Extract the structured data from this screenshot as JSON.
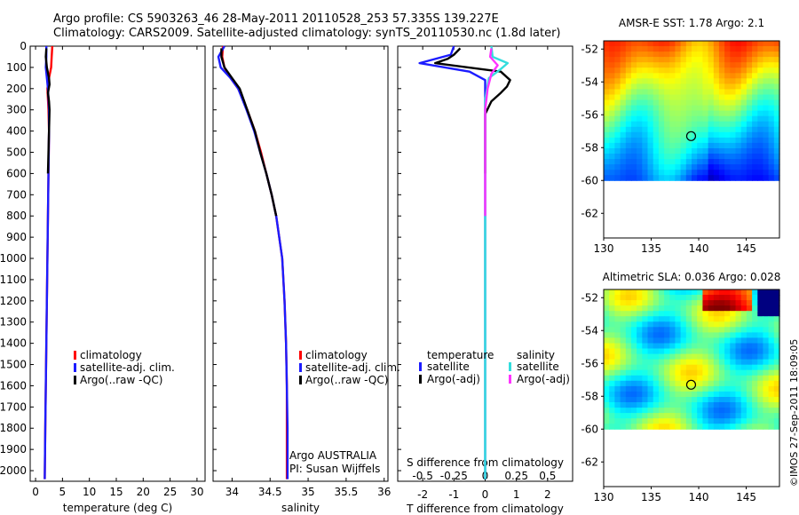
{
  "header": {
    "line1": "Argo profile: CS 5903263_46 28-May-2011 20110528_253 57.335S 139.227E",
    "line2": "Climatology: CARS2009. Satellite-adjusted climatology: synTS_20110530.nc (1.8d later)"
  },
  "stamp": "©IMOS 27-Sep-2011 18:09:05",
  "colors": {
    "climatology": "#ff0000",
    "satellite": "#1c1cff",
    "argo": "#000000",
    "sal_satellite": "#33dddd",
    "sal_argo": "#ff33ff"
  },
  "chart_data": [
    {
      "id": "temperature",
      "type": "line",
      "xlabel": "temperature (deg C)",
      "ylabel": "",
      "xlim": [
        -1,
        31.5
      ],
      "ylim": [
        2050,
        0
      ],
      "xticks": [
        0,
        5,
        10,
        15,
        20,
        25,
        30
      ],
      "yticks": [
        0,
        100,
        200,
        300,
        400,
        500,
        600,
        700,
        800,
        900,
        1000,
        1100,
        1200,
        1300,
        1400,
        1500,
        1600,
        1700,
        1800,
        1900,
        2000
      ],
      "legend": [
        "climatology",
        "satellite-adj. clim.",
        "Argo(..raw -QC)"
      ],
      "legend_position": "lower-center",
      "series": [
        {
          "name": "climatology",
          "color_key": "climatology",
          "x": [
            3.1,
            3.0,
            2.9,
            2.5,
            2.2,
            2.4,
            2.5,
            2.4,
            2.3,
            2.2,
            2.1,
            2.0,
            1.9,
            1.8,
            1.7
          ],
          "y": [
            0,
            50,
            100,
            150,
            200,
            300,
            400,
            600,
            800,
            1000,
            1200,
            1400,
            1600,
            1800,
            2040
          ]
        },
        {
          "name": "satellite-adj. clim.",
          "color_key": "satellite",
          "x": [
            2.0,
            2.0,
            1.9,
            2.1,
            2.3,
            2.5,
            2.5,
            2.4,
            2.3,
            2.2,
            2.1,
            2.0,
            1.9,
            1.8,
            1.7
          ],
          "y": [
            0,
            50,
            100,
            150,
            200,
            300,
            400,
            600,
            800,
            1000,
            1200,
            1400,
            1600,
            1800,
            2040
          ]
        },
        {
          "name": "Argo(..raw -QC)",
          "color_key": "argo",
          "x": [
            2.0,
            1.9,
            2.1,
            2.5,
            2.6,
            2.3,
            2.5,
            2.6,
            2.5,
            2.4,
            2.3
          ],
          "y": [
            10,
            50,
            100,
            150,
            180,
            220,
            260,
            300,
            400,
            500,
            600
          ]
        }
      ]
    },
    {
      "id": "salinity",
      "type": "line",
      "xlabel": "salinity",
      "ylabel": "",
      "xlim": [
        33.75,
        36.05
      ],
      "ylim": [
        2050,
        0
      ],
      "xticks": [
        34,
        34.5,
        35,
        35.5,
        36
      ],
      "legend": [
        "climatology",
        "satellite-adj. clim.",
        "Argo(..raw -QC)"
      ],
      "legend_position": "lower-center",
      "annotation": [
        "Argo AUSTRALIA",
        "PI: Susan Wijffels"
      ],
      "series": [
        {
          "name": "climatology",
          "color_key": "climatology",
          "x": [
            33.88,
            33.87,
            33.9,
            33.98,
            34.08,
            34.2,
            34.3,
            34.38,
            34.45,
            34.52,
            34.58,
            34.62,
            34.66,
            34.69,
            34.71,
            34.72,
            34.72,
            34.72
          ],
          "y": [
            0,
            50,
            100,
            150,
            200,
            300,
            400,
            500,
            600,
            700,
            800,
            900,
            1000,
            1200,
            1400,
            1600,
            1800,
            2040
          ]
        },
        {
          "name": "satellite-adj. clim.",
          "color_key": "satellite",
          "x": [
            33.9,
            33.82,
            33.85,
            33.98,
            34.08,
            34.19,
            34.29,
            34.37,
            34.45,
            34.52,
            34.58,
            34.62,
            34.66,
            34.69,
            34.71,
            34.72,
            34.73,
            34.73
          ],
          "y": [
            0,
            50,
            100,
            150,
            200,
            300,
            400,
            500,
            600,
            700,
            800,
            900,
            1000,
            1200,
            1400,
            1600,
            1800,
            2040
          ]
        },
        {
          "name": "Argo(..raw -QC)",
          "color_key": "argo",
          "x": [
            33.86,
            33.86,
            33.9,
            34.0,
            34.1,
            34.2,
            34.3,
            34.37,
            34.45,
            34.52,
            34.58
          ],
          "y": [
            10,
            50,
            100,
            150,
            200,
            300,
            400,
            500,
            600,
            700,
            800
          ]
        }
      ]
    },
    {
      "id": "differences",
      "type": "line",
      "xlabel": "T difference from climatology",
      "xlabel2": "S difference from climatology",
      "xlim": [
        -2.8,
        2.8
      ],
      "x2lim": [
        -0.7,
        0.7
      ],
      "ylim": [
        2050,
        0
      ],
      "xticks": [
        -2,
        -1,
        0,
        1,
        2
      ],
      "x2ticks": [
        -0.5,
        -0.25,
        0,
        0.25,
        0.5
      ],
      "x2ticklabels": [
        "-0.5",
        "-0.25",
        "0",
        "0.25",
        "0.5"
      ],
      "legend_groups": [
        {
          "title": "temperature",
          "items": [
            "satellite",
            "Argo(-adj)"
          ]
        },
        {
          "title": "salinity",
          "items": [
            "satellite",
            "Argo(-adj)"
          ]
        }
      ],
      "series": [
        {
          "name": "temperature satellite",
          "color_key": "satellite",
          "x": [
            -1.0,
            -1.1,
            -2.1,
            -0.5,
            0.0,
            0.0,
            0.0,
            0.0,
            0.0,
            0.0,
            0.0,
            0.0
          ],
          "y": [
            0,
            40,
            80,
            120,
            160,
            200,
            300,
            500,
            800,
            1200,
            1600,
            2040
          ]
        },
        {
          "name": "temperature Argo(-adj)",
          "color_key": "argo",
          "x": [
            -0.8,
            -1.0,
            -1.2,
            -1.6,
            0.5,
            0.8,
            0.7,
            0.5,
            0.2,
            0.0,
            0.0
          ],
          "y": [
            10,
            40,
            60,
            80,
            120,
            160,
            190,
            220,
            260,
            320,
            600
          ]
        },
        {
          "name": "salinity satellite",
          "color_key": "sal_satellite",
          "x": [
            0.05,
            0.06,
            0.18,
            0.12,
            0.03,
            0.0,
            0.0,
            0.0,
            0.0,
            0.0
          ],
          "y": [
            0,
            50,
            80,
            110,
            150,
            250,
            500,
            1000,
            1500,
            2040
          ]
        },
        {
          "name": "salinity Argo(-adj)",
          "color_key": "sal_argo",
          "x": [
            0.05,
            0.04,
            0.1,
            0.05,
            0.02,
            0.0,
            0.0,
            0.0
          ],
          "y": [
            10,
            50,
            90,
            130,
            200,
            300,
            500,
            800
          ]
        }
      ]
    },
    {
      "id": "sst_map",
      "type": "heatmap",
      "title": "AMSR-E SST: 1.78 Argo: 2.1",
      "xlim": [
        130,
        148.5
      ],
      "ylim": [
        -63.5,
        -51.5
      ],
      "xticks": [
        130,
        135,
        140,
        145
      ],
      "yticks": [
        -52,
        -54,
        -56,
        -58,
        -60,
        -62
      ],
      "data_ylim": [
        -60,
        -51.5
      ],
      "marker": {
        "lon": 139.2,
        "lat": -57.3
      }
    },
    {
      "id": "sla_map",
      "type": "heatmap",
      "title": "Altimetric SLA: 0.036 Argo: 0.028",
      "xlim": [
        130,
        148.5
      ],
      "ylim": [
        -63.5,
        -51.5
      ],
      "xticks": [
        130,
        135,
        140,
        145
      ],
      "yticks": [
        -52,
        -54,
        -56,
        -58,
        -60,
        -62
      ],
      "data_ylim": [
        -60,
        -51.5
      ],
      "marker": {
        "lon": 139.2,
        "lat": -57.3
      }
    }
  ]
}
